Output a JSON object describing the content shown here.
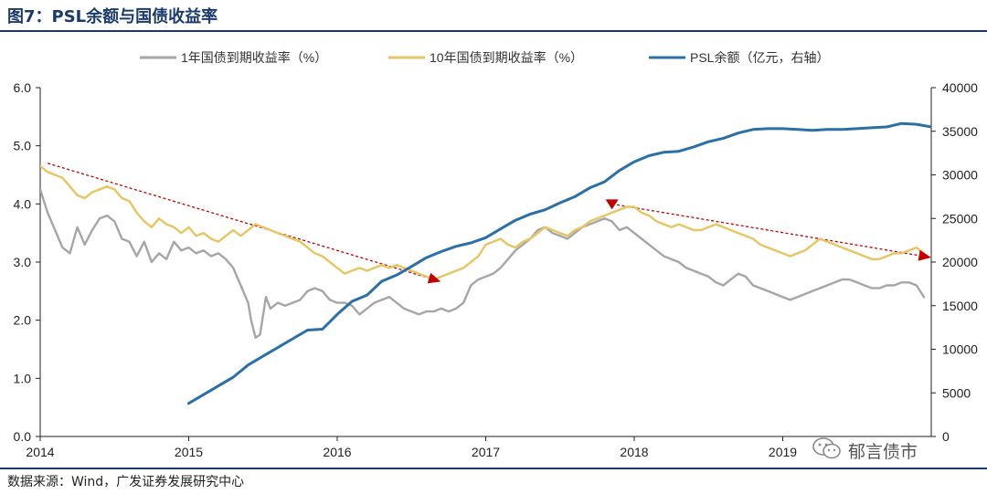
{
  "header": {
    "title": "图7：PSL余额与国债收益率"
  },
  "footer": {
    "source": "数据来源：Wind，广发证券发展研究中心"
  },
  "watermark": {
    "text": "郁言债市",
    "icon": "wechat-icon"
  },
  "colors": {
    "y1": "#a6a6a6",
    "y10": "#e6c563",
    "psl": "#2a6fa5",
    "trend": "#c00000"
  },
  "chart_data": {
    "type": "line",
    "title": "",
    "x_ticks": [
      "2014",
      "2015",
      "2016",
      "2017",
      "2018",
      "2019"
    ],
    "left_axis": {
      "range": [
        0,
        6
      ],
      "ticks": [
        "0.0",
        "1.0",
        "2.0",
        "3.0",
        "4.0",
        "5.0",
        "6.0"
      ]
    },
    "right_axis": {
      "range": [
        0,
        40000
      ],
      "ticks": [
        "0",
        "5000",
        "10000",
        "15000",
        "20000",
        "25000",
        "30000",
        "35000",
        "40000"
      ]
    },
    "legend_position": "top",
    "series": [
      {
        "name": "1年国债到期收益率（%）",
        "axis": "left",
        "x": [
          2014.0,
          2014.05,
          2014.1,
          2014.15,
          2014.2,
          2014.25,
          2014.3,
          2014.35,
          2014.4,
          2014.45,
          2014.5,
          2014.55,
          2014.6,
          2014.65,
          2014.7,
          2014.75,
          2014.8,
          2014.85,
          2014.9,
          2014.95,
          2015.0,
          2015.05,
          2015.1,
          2015.15,
          2015.2,
          2015.25,
          2015.3,
          2015.35,
          2015.4,
          2015.42,
          2015.45,
          2015.48,
          2015.52,
          2015.55,
          2015.6,
          2015.65,
          2015.7,
          2015.75,
          2015.8,
          2015.85,
          2015.9,
          2015.95,
          2016.0,
          2016.05,
          2016.1,
          2016.15,
          2016.2,
          2016.25,
          2016.3,
          2016.35,
          2016.4,
          2016.45,
          2016.5,
          2016.55,
          2016.6,
          2016.65,
          2016.7,
          2016.75,
          2016.8,
          2016.85,
          2016.9,
          2016.95,
          2017.0,
          2017.05,
          2017.1,
          2017.15,
          2017.2,
          2017.25,
          2017.3,
          2017.35,
          2017.4,
          2017.45,
          2017.5,
          2017.55,
          2017.6,
          2017.65,
          2017.7,
          2017.75,
          2017.8,
          2017.85,
          2017.9,
          2017.95,
          2018.0,
          2018.05,
          2018.1,
          2018.15,
          2018.2,
          2018.25,
          2018.3,
          2018.35,
          2018.4,
          2018.45,
          2018.5,
          2018.55,
          2018.6,
          2018.65,
          2018.7,
          2018.75,
          2018.8,
          2018.85,
          2018.9,
          2018.95,
          2019.0,
          2019.05,
          2019.1,
          2019.15,
          2019.2,
          2019.25,
          2019.3,
          2019.35,
          2019.4,
          2019.45,
          2019.5,
          2019.55,
          2019.6,
          2019.65,
          2019.7,
          2019.75,
          2019.8,
          2019.85,
          2019.9,
          2019.95
        ],
        "values": [
          4.25,
          3.85,
          3.55,
          3.25,
          3.15,
          3.6,
          3.3,
          3.55,
          3.75,
          3.8,
          3.7,
          3.4,
          3.35,
          3.1,
          3.35,
          3.0,
          3.15,
          3.05,
          3.35,
          3.2,
          3.25,
          3.15,
          3.2,
          3.1,
          3.15,
          3.05,
          2.9,
          2.6,
          2.3,
          2.0,
          1.7,
          1.75,
          2.4,
          2.2,
          2.3,
          2.25,
          2.3,
          2.35,
          2.5,
          2.55,
          2.5,
          2.35,
          2.3,
          2.3,
          2.25,
          2.1,
          2.2,
          2.3,
          2.35,
          2.4,
          2.3,
          2.2,
          2.15,
          2.1,
          2.15,
          2.15,
          2.2,
          2.15,
          2.2,
          2.3,
          2.6,
          2.7,
          2.75,
          2.8,
          2.9,
          3.05,
          3.2,
          3.3,
          3.4,
          3.55,
          3.6,
          3.5,
          3.45,
          3.4,
          3.5,
          3.6,
          3.65,
          3.7,
          3.75,
          3.7,
          3.55,
          3.6,
          3.5,
          3.4,
          3.3,
          3.2,
          3.1,
          3.05,
          3.0,
          2.9,
          2.85,
          2.8,
          2.75,
          2.65,
          2.6,
          2.7,
          2.8,
          2.75,
          2.6,
          2.55,
          2.5,
          2.45,
          2.4,
          2.35,
          2.4,
          2.45,
          2.5,
          2.55,
          2.6,
          2.65,
          2.7,
          2.7,
          2.65,
          2.6,
          2.55,
          2.55,
          2.6,
          2.6,
          2.65,
          2.65,
          2.6,
          2.4
        ]
      },
      {
        "name": "10年国债到期收益率（%）",
        "axis": "left",
        "x": [
          2014.0,
          2014.05,
          2014.1,
          2014.15,
          2014.2,
          2014.25,
          2014.3,
          2014.35,
          2014.4,
          2014.45,
          2014.5,
          2014.55,
          2014.6,
          2014.65,
          2014.7,
          2014.75,
          2014.8,
          2014.85,
          2014.9,
          2014.95,
          2015.0,
          2015.05,
          2015.1,
          2015.15,
          2015.2,
          2015.25,
          2015.3,
          2015.35,
          2015.4,
          2015.45,
          2015.5,
          2015.55,
          2015.6,
          2015.65,
          2015.7,
          2015.75,
          2015.8,
          2015.85,
          2015.9,
          2015.95,
          2016.0,
          2016.05,
          2016.1,
          2016.15,
          2016.2,
          2016.25,
          2016.3,
          2016.35,
          2016.4,
          2016.45,
          2016.5,
          2016.55,
          2016.6,
          2016.65,
          2016.7,
          2016.75,
          2016.8,
          2016.85,
          2016.9,
          2016.95,
          2017.0,
          2017.05,
          2017.1,
          2017.15,
          2017.2,
          2017.25,
          2017.3,
          2017.35,
          2017.4,
          2017.45,
          2017.5,
          2017.55,
          2017.6,
          2017.65,
          2017.7,
          2017.75,
          2017.8,
          2017.85,
          2017.9,
          2017.95,
          2018.0,
          2018.05,
          2018.1,
          2018.15,
          2018.2,
          2018.25,
          2018.3,
          2018.35,
          2018.4,
          2018.45,
          2018.5,
          2018.55,
          2018.6,
          2018.65,
          2018.7,
          2018.75,
          2018.8,
          2018.85,
          2018.9,
          2018.95,
          2019.0,
          2019.05,
          2019.1,
          2019.15,
          2019.2,
          2019.25,
          2019.3,
          2019.35,
          2019.4,
          2019.45,
          2019.5,
          2019.55,
          2019.6,
          2019.65,
          2019.7,
          2019.75,
          2019.8,
          2019.85,
          2019.9,
          2019.95
        ],
        "values": [
          4.65,
          4.55,
          4.5,
          4.45,
          4.3,
          4.15,
          4.1,
          4.2,
          4.25,
          4.3,
          4.25,
          4.1,
          4.05,
          3.85,
          3.7,
          3.6,
          3.75,
          3.65,
          3.6,
          3.5,
          3.6,
          3.45,
          3.5,
          3.4,
          3.35,
          3.45,
          3.55,
          3.45,
          3.55,
          3.65,
          3.6,
          3.55,
          3.5,
          3.45,
          3.4,
          3.35,
          3.25,
          3.15,
          3.1,
          3.0,
          2.9,
          2.8,
          2.85,
          2.9,
          2.85,
          2.9,
          2.95,
          2.9,
          2.95,
          2.9,
          2.85,
          2.8,
          2.75,
          2.7,
          2.75,
          2.8,
          2.85,
          2.9,
          3.0,
          3.1,
          3.3,
          3.35,
          3.4,
          3.3,
          3.25,
          3.35,
          3.4,
          3.5,
          3.6,
          3.55,
          3.5,
          3.45,
          3.55,
          3.6,
          3.7,
          3.75,
          3.8,
          3.85,
          3.9,
          3.95,
          3.95,
          3.85,
          3.8,
          3.7,
          3.65,
          3.6,
          3.65,
          3.6,
          3.55,
          3.55,
          3.6,
          3.65,
          3.6,
          3.55,
          3.5,
          3.45,
          3.4,
          3.3,
          3.25,
          3.2,
          3.15,
          3.1,
          3.15,
          3.2,
          3.3,
          3.4,
          3.35,
          3.3,
          3.25,
          3.2,
          3.15,
          3.1,
          3.05,
          3.05,
          3.1,
          3.15,
          3.15,
          3.2,
          3.25,
          3.15
        ]
      },
      {
        "name": "PSL余额（亿元，右轴）",
        "axis": "right",
        "x": [
          2015.0,
          2015.1,
          2015.2,
          2015.3,
          2015.4,
          2015.5,
          2015.6,
          2015.7,
          2015.8,
          2015.9,
          2016.0,
          2016.1,
          2016.2,
          2016.3,
          2016.4,
          2016.5,
          2016.6,
          2016.7,
          2016.8,
          2016.9,
          2017.0,
          2017.1,
          2017.2,
          2017.3,
          2017.4,
          2017.5,
          2017.6,
          2017.7,
          2017.8,
          2017.9,
          2018.0,
          2018.1,
          2018.2,
          2018.3,
          2018.4,
          2018.5,
          2018.6,
          2018.7,
          2018.8,
          2018.9,
          2019.0,
          2019.1,
          2019.2,
          2019.3,
          2019.4,
          2019.5,
          2019.6,
          2019.7,
          2019.8,
          2019.9,
          2020.0
        ],
        "values": [
          3800,
          4800,
          5800,
          6800,
          8200,
          9200,
          10200,
          11200,
          12200,
          12300,
          14000,
          15500,
          16200,
          17800,
          18500,
          19500,
          20500,
          21200,
          21800,
          22200,
          22800,
          23800,
          24800,
          25500,
          26000,
          26800,
          27500,
          28500,
          29200,
          30500,
          31500,
          32200,
          32600,
          32700,
          33200,
          33800,
          34200,
          34800,
          35200,
          35300,
          35300,
          35200,
          35100,
          35200,
          35200,
          35300,
          35400,
          35500,
          35900,
          35800,
          35500
        ]
      }
    ],
    "trend_lines": [
      {
        "x": [
          2014.05,
          2016.65
        ],
        "y": [
          4.7,
          2.7
        ]
      },
      {
        "x": [
          2017.85,
          2019.95
        ],
        "y": [
          4.0,
          3.1
        ]
      }
    ]
  }
}
